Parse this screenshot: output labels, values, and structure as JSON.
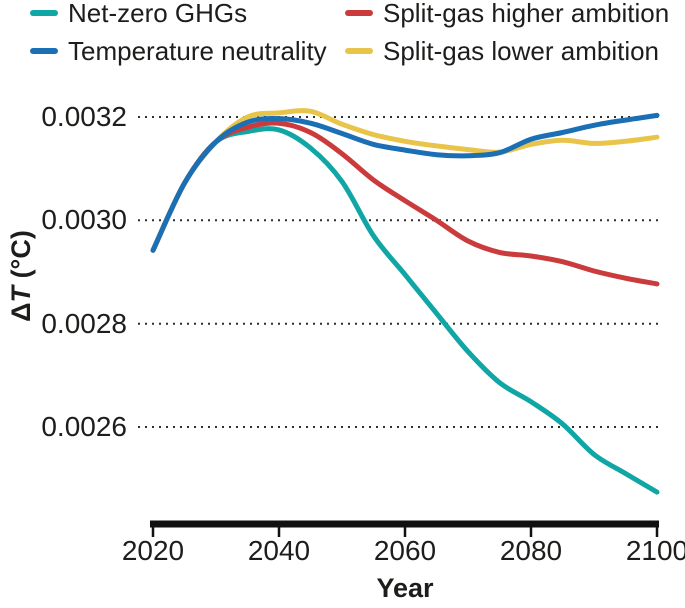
{
  "chart_data": {
    "type": "line",
    "title": "",
    "xlabel": "Year",
    "ylabel": "ΔT (°C)",
    "ylabel_rich": {
      "delta": "Δ",
      "t": "T",
      "unit": " (°C)"
    },
    "x_axis_range": [
      2020,
      2100
    ],
    "y_axis_range": [
      0.00245,
      0.00325
    ],
    "x_ticks": [
      2020,
      2040,
      2060,
      2080,
      2100
    ],
    "y_ticks": [
      {
        "label": "0.0032",
        "value": 0.0032
      },
      {
        "label": "0.0030",
        "value": 0.003
      },
      {
        "label": "0.0028",
        "value": 0.0028
      },
      {
        "label": "0.0026",
        "value": 0.0026
      }
    ],
    "grid": "horizontal dotted lines at every y tick",
    "legend_position": "top, two columns",
    "x": [
      2020,
      2025,
      2030,
      2035,
      2040,
      2045,
      2050,
      2055,
      2060,
      2065,
      2070,
      2075,
      2080,
      2085,
      2090,
      2095,
      2100
    ],
    "series": [
      {
        "id": "net-zero-ghgs",
        "name": "Net-zero GHGs",
        "color": "#10A6A6",
        "values": [
          0.002942,
          0.003072,
          0.003152,
          0.003172,
          0.003175,
          0.00314,
          0.003075,
          0.00297,
          0.002895,
          0.00282,
          0.002746,
          0.002686,
          0.002649,
          0.002606,
          0.002547,
          0.00251,
          0.002474
        ]
      },
      {
        "id": "temperature-neutrality",
        "name": "Temperature neutrality",
        "color": "#1B6FB5",
        "values": [
          0.002942,
          0.003072,
          0.003152,
          0.00319,
          0.003197,
          0.003188,
          0.003168,
          0.003147,
          0.003136,
          0.003127,
          0.003125,
          0.003131,
          0.003157,
          0.00317,
          0.003184,
          0.003194,
          0.003203
        ]
      },
      {
        "id": "split-gas-higher-ambition",
        "name": "Split-gas higher ambition",
        "color": "#CC3B3C",
        "values": [
          0.002942,
          0.003072,
          0.003152,
          0.00318,
          0.003188,
          0.00317,
          0.003129,
          0.003078,
          0.003038,
          0.003,
          0.00296,
          0.002938,
          0.002931,
          0.00292,
          0.002902,
          0.002888,
          0.002877
        ]
      },
      {
        "id": "split-gas-lower-ambition",
        "name": "Split-gas lower ambition",
        "color": "#E8C54A",
        "values": [
          0.002942,
          0.003072,
          0.003152,
          0.0032,
          0.003208,
          0.003211,
          0.003186,
          0.003166,
          0.003153,
          0.003144,
          0.003137,
          0.003132,
          0.003147,
          0.003155,
          0.003149,
          0.003153,
          0.003161
        ]
      }
    ]
  }
}
